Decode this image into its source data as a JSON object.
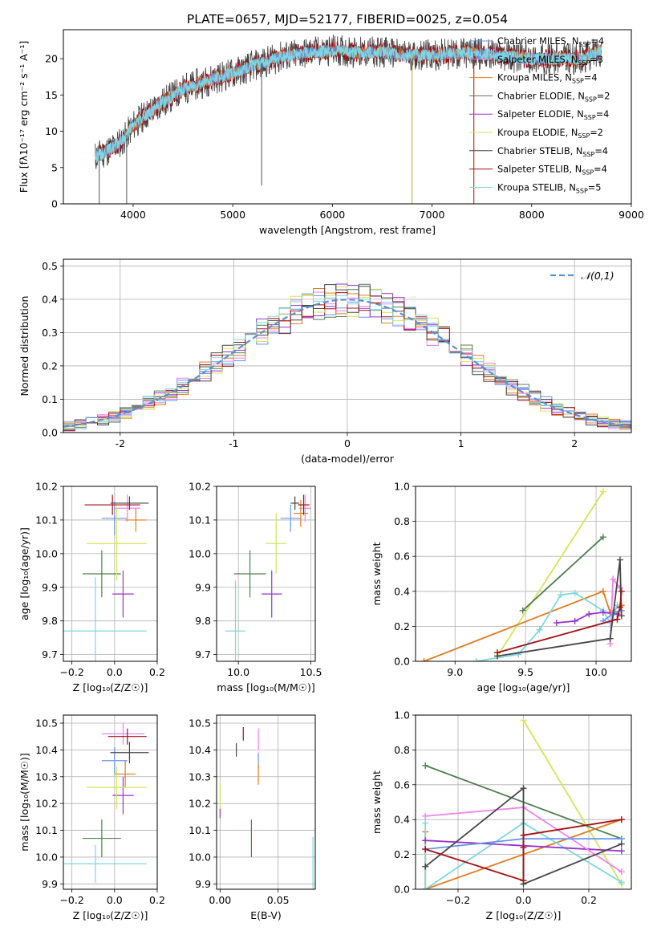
{
  "figure": {
    "title": "PLATE=0657, MJD=52177, FIBERID=0025, z=0.054"
  },
  "colors": {
    "Chabrier MILES": "#6495ed",
    "Salpeter MILES": "#ee82ee",
    "Kroupa MILES": "#e07b20",
    "Chabrier ELODIE": "#4f7f4f",
    "Salpeter ELODIE": "#9932cc",
    "Kroupa ELODIE": "#d4e45a",
    "Chabrier STELIB": "#474747",
    "Salpeter STELIB": "#a50f15",
    "Kroupa STELIB": "#7fd6e0",
    "normal": "#5b8fd6"
  },
  "chart_data": [
    {
      "id": "spectrum",
      "type": "line",
      "xlabel": "wavelength [Angstrom, rest frame]",
      "ylabel": "Flux [fλ10⁻¹⁷ erg cm⁻² s⁻¹ A⁻¹]",
      "xlim": [
        3300,
        9000
      ],
      "ylim": [
        0,
        24
      ],
      "xticks": [
        4000,
        5000,
        6000,
        7000,
        8000,
        9000
      ],
      "yticks": [
        0,
        5,
        10,
        15,
        20
      ],
      "legend_position": "right",
      "legend": [
        {
          "name": "Chabrier MILES",
          "label": "Chabrier MILES, N",
          "sub": "SSP",
          "eq": "=4"
        },
        {
          "name": "Salpeter MILES",
          "label": "Salpeter MILES, N",
          "sub": "SSP",
          "eq": "=3"
        },
        {
          "name": "Kroupa MILES",
          "label": "Kroupa MILES, N",
          "sub": "SSP",
          "eq": "=4"
        },
        {
          "name": "Chabrier ELODIE",
          "label": "Chabrier ELODIE, N",
          "sub": "SSP",
          "eq": "=2"
        },
        {
          "name": "Salpeter ELODIE",
          "label": "Salpeter ELODIE, N",
          "sub": "SSP",
          "eq": "=4"
        },
        {
          "name": "Kroupa ELODIE",
          "label": "Kroupa ELODIE, N",
          "sub": "SSP",
          "eq": "=2"
        },
        {
          "name": "Chabrier STELIB",
          "label": "Chabrier STELIB, N",
          "sub": "SSP",
          "eq": "=4"
        },
        {
          "name": "Salpeter STELIB",
          "label": "Salpeter STELIB, N",
          "sub": "SSP",
          "eq": "=4"
        },
        {
          "name": "Kroupa STELIB",
          "label": "Kroupa STELIB, N",
          "sub": "SSP",
          "eq": "=5"
        }
      ],
      "continuum": {
        "x": [
          3620,
          3700,
          3800,
          3900,
          4000,
          4100,
          4300,
          4500,
          4800,
          5000,
          5200,
          5500,
          5800,
          6000,
          6300,
          6500,
          6700,
          7000,
          7400,
          8000,
          8500,
          8700
        ],
        "y": [
          6.5,
          7.0,
          7.8,
          8.8,
          10.8,
          12.0,
          14.0,
          15.8,
          17.2,
          18.0,
          19.0,
          20.3,
          20.9,
          21.2,
          20.8,
          21.0,
          20.5,
          20.5,
          20.8,
          20.0,
          20.0,
          21.2
        ]
      },
      "absorption_lines": [
        {
          "x": 3660,
          "y": 0
        },
        {
          "x": 3935,
          "y": 0
        },
        {
          "x": 5290,
          "y": 2.5
        },
        {
          "x": 6800,
          "y": 0
        },
        {
          "x": 7420,
          "y": 0
        }
      ]
    },
    {
      "id": "residuals",
      "type": "histogram",
      "xlabel": "(data-model)/error",
      "ylabel": "Normed distribution",
      "xlim": [
        -2.5,
        2.5
      ],
      "ylim": [
        0,
        0.52
      ],
      "xticks": [
        -2,
        -1,
        0,
        1,
        2
      ],
      "yticks": [
        0.0,
        0.1,
        0.2,
        0.3,
        0.4,
        0.5
      ],
      "bin_width": 0.1,
      "grid": true,
      "legend_position": "top-right",
      "normal_label": "𝒩(0,1)",
      "series": [
        {
          "name": "Chabrier MILES",
          "seed": 1
        },
        {
          "name": "Salpeter MILES",
          "seed": 2
        },
        {
          "name": "Kroupa MILES",
          "seed": 3
        },
        {
          "name": "Chabrier ELODIE",
          "seed": 4
        },
        {
          "name": "Salpeter ELODIE",
          "seed": 5
        },
        {
          "name": "Kroupa ELODIE",
          "seed": 6
        },
        {
          "name": "Chabrier STELIB",
          "seed": 7
        },
        {
          "name": "Salpeter STELIB",
          "seed": 8
        },
        {
          "name": "Kroupa STELIB",
          "seed": 9
        }
      ]
    },
    {
      "id": "age-vs-Z",
      "type": "errorbar",
      "xlabel": "Z [log₁₀(Z/Z☉)]",
      "ylabel": "age [log₁₀(age/yr)]",
      "xlim": [
        -0.24,
        0.2
      ],
      "ylim": [
        9.68,
        10.2
      ],
      "xticks": [
        -0.2,
        0.0,
        0.2
      ],
      "xticklabels": [
        "−0.2",
        "0.0",
        "0.2"
      ],
      "yticks": [
        9.7,
        9.8,
        9.9,
        10.0,
        10.1,
        10.2
      ],
      "grid": true,
      "points": [
        {
          "name": "Chabrier MILES",
          "x": 0.0,
          "xerr": 0.06,
          "y": 10.105,
          "yerr": 0.05
        },
        {
          "name": "Salpeter MILES",
          "x": 0.06,
          "xerr": 0.06,
          "y": 10.135,
          "yerr": 0.04
        },
        {
          "name": "Kroupa MILES",
          "x": 0.1,
          "xerr": 0.05,
          "y": 10.1,
          "yerr": 0.035
        },
        {
          "name": "Chabrier ELODIE",
          "x": -0.06,
          "xerr": 0.09,
          "y": 9.94,
          "yerr": 0.07
        },
        {
          "name": "Salpeter ELODIE",
          "x": 0.04,
          "xerr": 0.05,
          "y": 9.88,
          "yerr": 0.07
        },
        {
          "name": "Kroupa ELODIE",
          "x": 0.01,
          "xerr": 0.14,
          "y": 10.03,
          "yerr": 0.11
        },
        {
          "name": "Chabrier STELIB",
          "x": 0.07,
          "xerr": 0.09,
          "y": 10.15,
          "yerr": 0.02
        },
        {
          "name": "Salpeter STELIB",
          "x": -0.01,
          "xerr": 0.13,
          "y": 10.145,
          "yerr": 0.03
        },
        {
          "name": "Kroupa STELIB",
          "x": -0.09,
          "xerr": 0.24,
          "y": 9.77,
          "yerr": 0.16
        }
      ]
    },
    {
      "id": "age-vs-mass",
      "type": "errorbar",
      "xlabel": "mass [log₁₀(M/M☉)]",
      "ylabel": "",
      "xlim": [
        9.85,
        10.53
      ],
      "ylim": [
        9.68,
        10.2
      ],
      "xticks": [
        10.0,
        10.5
      ],
      "xticklabels": [
        "10.0",
        "10.5"
      ],
      "yticks": [
        9.7,
        9.8,
        9.9,
        10.0,
        10.1,
        10.2
      ],
      "grid": true,
      "points": [
        {
          "name": "Chabrier MILES",
          "x": 10.36,
          "xerr": 0.07,
          "y": 10.105,
          "yerr": 0.04
        },
        {
          "name": "Salpeter MILES",
          "x": 10.46,
          "xerr": 0.04,
          "y": 10.135,
          "yerr": 0.04
        },
        {
          "name": "Kroupa MILES",
          "x": 10.43,
          "xerr": 0.05,
          "y": 10.12,
          "yerr": 0.04
        },
        {
          "name": "Chabrier ELODIE",
          "x": 10.08,
          "xerr": 0.11,
          "y": 9.94,
          "yerr": 0.07
        },
        {
          "name": "Salpeter ELODIE",
          "x": 10.23,
          "xerr": 0.07,
          "y": 9.88,
          "yerr": 0.07
        },
        {
          "name": "Kroupa ELODIE",
          "x": 10.26,
          "xerr": 0.07,
          "y": 10.03,
          "yerr": 0.09
        },
        {
          "name": "Chabrier STELIB",
          "x": 10.39,
          "xerr": 0.03,
          "y": 10.15,
          "yerr": 0.02
        },
        {
          "name": "Salpeter STELIB",
          "x": 10.45,
          "xerr": 0.04,
          "y": 10.145,
          "yerr": 0.03
        },
        {
          "name": "Kroupa STELIB",
          "x": 9.98,
          "xerr": 0.07,
          "y": 9.77,
          "yerr": 0.15
        }
      ]
    },
    {
      "id": "weight-vs-age",
      "type": "line",
      "xlabel": "age [log₁₀(age/yr)]",
      "ylabel": "mass weight",
      "xlim": [
        8.72,
        10.25
      ],
      "ylim": [
        0,
        1
      ],
      "xticks": [
        9.0,
        9.5,
        10.0
      ],
      "xticklabels": [
        "9.0",
        "9.5",
        "10.0"
      ],
      "yticks": [
        0.0,
        0.2,
        0.4,
        0.6,
        0.8,
        1.0
      ],
      "grid": true,
      "series": [
        {
          "name": "Kroupa ELODIE",
          "x": [
            9.3,
            10.05
          ],
          "y": [
            0.03,
            0.97
          ]
        },
        {
          "name": "Chabrier ELODIE",
          "x": [
            9.48,
            10.05
          ],
          "y": [
            0.29,
            0.71
          ]
        },
        {
          "name": "Kroupa MILES",
          "x": [
            8.78,
            10.05,
            10.1,
            10.18
          ],
          "y": [
            0.0,
            0.4,
            0.28,
            0.32
          ]
        },
        {
          "name": "Kroupa STELIB",
          "x": [
            9.15,
            9.45,
            9.6,
            9.75,
            9.85,
            10.05,
            10.1,
            10.15
          ],
          "y": [
            0.0,
            0.04,
            0.18,
            0.38,
            0.39,
            0.29,
            0.22,
            0.32
          ]
        },
        {
          "name": "Salpeter ELODIE",
          "x": [
            9.72,
            9.85,
            9.95,
            10.05,
            10.15
          ],
          "y": [
            0.22,
            0.23,
            0.27,
            0.28,
            0.27
          ]
        },
        {
          "name": "Salpeter MILES",
          "x": [
            10.1,
            10.12,
            10.17
          ],
          "y": [
            0.1,
            0.47,
            0.42
          ]
        },
        {
          "name": "Chabrier MILES",
          "x": [
            10.05,
            10.13,
            10.18
          ],
          "y": [
            0.23,
            0.28,
            0.29
          ]
        },
        {
          "name": "Chabrier STELIB",
          "x": [
            9.3,
            10.1,
            10.17,
            10.18
          ],
          "y": [
            0.03,
            0.13,
            0.58,
            0.26
          ]
        },
        {
          "name": "Salpeter STELIB",
          "x": [
            9.3,
            10.15,
            10.17,
            10.18
          ],
          "y": [
            0.05,
            0.24,
            0.31,
            0.4
          ]
        }
      ]
    },
    {
      "id": "mass-vs-Z",
      "type": "errorbar",
      "xlabel": "Z [log₁₀(Z/Z☉)]",
      "ylabel": "mass [log₁₀(M/M☉)]",
      "xlim": [
        -0.24,
        0.2
      ],
      "ylim": [
        9.88,
        10.53
      ],
      "xticks": [
        -0.2,
        0.0,
        0.2
      ],
      "xticklabels": [
        "−0.2",
        "0.0",
        "0.2"
      ],
      "yticks": [
        9.9,
        10.0,
        10.1,
        10.2,
        10.3,
        10.4,
        10.5
      ],
      "grid": true,
      "points": [
        {
          "name": "Chabrier MILES",
          "x": 0.0,
          "xerr": 0.06,
          "y": 10.36,
          "yerr": 0.05
        },
        {
          "name": "Salpeter MILES",
          "x": 0.04,
          "xerr": 0.1,
          "y": 10.46,
          "yerr": 0.04
        },
        {
          "name": "Kroupa MILES",
          "x": 0.05,
          "xerr": 0.05,
          "y": 10.31,
          "yerr": 0.05
        },
        {
          "name": "Chabrier ELODIE",
          "x": -0.06,
          "xerr": 0.09,
          "y": 10.07,
          "yerr": 0.07
        },
        {
          "name": "Salpeter ELODIE",
          "x": 0.04,
          "xerr": 0.05,
          "y": 10.23,
          "yerr": 0.07
        },
        {
          "name": "Kroupa ELODIE",
          "x": 0.01,
          "xerr": 0.14,
          "y": 10.26,
          "yerr": 0.08
        },
        {
          "name": "Chabrier STELIB",
          "x": 0.07,
          "xerr": 0.09,
          "y": 10.39,
          "yerr": 0.04
        },
        {
          "name": "Salpeter STELIB",
          "x": 0.06,
          "xerr": 0.09,
          "y": 10.45,
          "yerr": 0.03
        },
        {
          "name": "Kroupa STELIB",
          "x": -0.09,
          "xerr": 0.24,
          "y": 9.975,
          "yerr": 0.07
        }
      ]
    },
    {
      "id": "mass-vs-ebv",
      "type": "errorbar",
      "xlabel": "E(B-V)",
      "ylabel": "",
      "xlim": [
        -0.003,
        0.082
      ],
      "ylim": [
        9.88,
        10.53
      ],
      "xticks": [
        0.0,
        0.05
      ],
      "xticklabels": [
        "0.00",
        "0.05"
      ],
      "yticks": [
        9.9,
        10.0,
        10.1,
        10.2,
        10.3,
        10.4,
        10.5
      ],
      "grid": true,
      "points": [
        {
          "name": "Chabrier MILES",
          "x": 0.033,
          "xerr": 0,
          "y": 10.36,
          "yerr": 0.03
        },
        {
          "name": "Salpeter MILES",
          "x": 0.033,
          "xerr": 0,
          "y": 10.44,
          "yerr": 0.04
        },
        {
          "name": "Kroupa MILES",
          "x": 0.033,
          "xerr": 0,
          "y": 10.31,
          "yerr": 0.04
        },
        {
          "name": "Chabrier ELODIE",
          "x": 0.027,
          "xerr": 0,
          "y": 10.07,
          "yerr": 0.07
        },
        {
          "name": "Salpeter ELODIE",
          "x": 0.0,
          "xerr": 0,
          "y": 10.165,
          "yerr": 0.02
        },
        {
          "name": "Kroupa ELODIE",
          "x": 0.0,
          "xerr": 0,
          "y": 10.23,
          "yerr": 0.05
        },
        {
          "name": "Chabrier STELIB",
          "x": 0.014,
          "xerr": 0,
          "y": 10.4,
          "yerr": 0.025
        },
        {
          "name": "Salpeter STELIB",
          "x": 0.02,
          "xerr": 0,
          "y": 10.46,
          "yerr": 0.025
        },
        {
          "name": "Kroupa STELIB",
          "x": 0.08,
          "xerr": 0,
          "y": 9.975,
          "yerr": 0.1
        }
      ]
    },
    {
      "id": "weight-vs-Z",
      "type": "line",
      "xlabel": "Z [log₁₀(Z/Z☉)]",
      "ylabel": "mass weight",
      "xlim": [
        -0.33,
        0.33
      ],
      "ylim": [
        0,
        1
      ],
      "xticks": [
        -0.2,
        0.0,
        0.2
      ],
      "xticklabels": [
        "−0.2",
        "0.0",
        "0.2"
      ],
      "yticks": [
        0.0,
        0.2,
        0.4,
        0.6,
        0.8,
        1.0
      ],
      "grid": true,
      "series": [
        {
          "name": "Kroupa ELODIE",
          "x": [
            0.0,
            0.3
          ],
          "y": [
            0.97,
            0.03
          ]
        },
        {
          "name": "Chabrier ELODIE",
          "x": [
            -0.3,
            0.3
          ],
          "y": [
            0.71,
            0.29
          ]
        },
        {
          "name": "Kroupa MILES",
          "x": [
            -0.3,
            -0.3,
            0.3
          ],
          "y": [
            0.33,
            0.0,
            0.4
          ]
        },
        {
          "name": "Kroupa STELIB",
          "x": [
            -0.3,
            -0.3,
            0.0,
            0.3
          ],
          "y": [
            0.38,
            0.0,
            0.38,
            0.04
          ]
        },
        {
          "name": "Salpeter ELODIE",
          "x": [
            -0.3,
            0.3
          ],
          "y": [
            0.28,
            0.22
          ]
        },
        {
          "name": "Salpeter MILES",
          "x": [
            -0.3,
            0.0,
            0.3
          ],
          "y": [
            0.42,
            0.47,
            0.1
          ]
        },
        {
          "name": "Chabrier MILES",
          "x": [
            -0.3,
            0.0,
            0.3
          ],
          "y": [
            0.23,
            0.29,
            0.29
          ]
        },
        {
          "name": "Chabrier STELIB",
          "x": [
            -0.3,
            0.0,
            0.0,
            0.3
          ],
          "y": [
            0.13,
            0.58,
            0.03,
            0.26
          ]
        },
        {
          "name": "Salpeter STELIB",
          "x": [
            -0.3,
            0.0,
            0.0,
            0.0,
            0.3
          ],
          "y": [
            0.23,
            0.05,
            0.24,
            0.31,
            0.4
          ]
        }
      ]
    }
  ]
}
